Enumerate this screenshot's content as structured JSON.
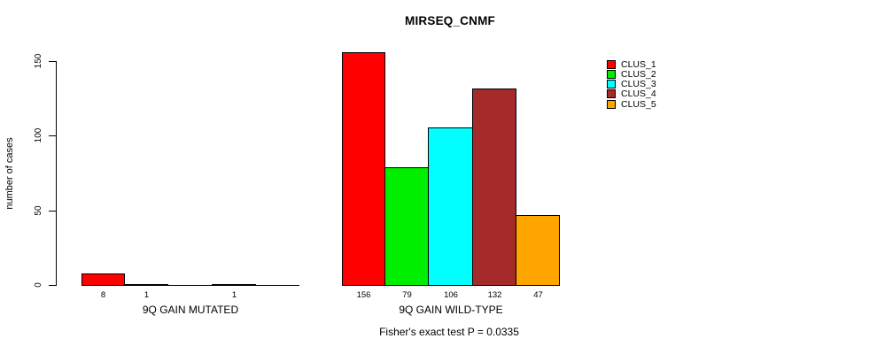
{
  "chart_data": {
    "type": "bar",
    "title": "MIRSEQ_CNMF",
    "ylabel": "number of cases",
    "xlabel": "",
    "ylim": [
      0,
      150
    ],
    "yticks": [
      "0",
      "50",
      "100",
      "150"
    ],
    "grid": false,
    "legend_position": "top-right",
    "legend": [
      {
        "name": "CLUS_1",
        "color": "#FF0000"
      },
      {
        "name": "CLUS_2",
        "color": "#00EE00"
      },
      {
        "name": "CLUS_3",
        "color": "#00FFFF"
      },
      {
        "name": "CLUS_4",
        "color": "#A52A2A"
      },
      {
        "name": "CLUS_5",
        "color": "#FFA500"
      }
    ],
    "groups": [
      {
        "label": "9Q GAIN MUTATED",
        "series": [
          "CLUS_1",
          "CLUS_2",
          "CLUS_3",
          "CLUS_4",
          "CLUS_5"
        ],
        "values": [
          8,
          1,
          0,
          1,
          0
        ],
        "bar_labels": [
          "8",
          "1",
          "",
          "1",
          ""
        ]
      },
      {
        "label": "9Q GAIN WILD-TYPE",
        "series": [
          "CLUS_1",
          "CLUS_2",
          "CLUS_3",
          "CLUS_4",
          "CLUS_5"
        ],
        "values": [
          156,
          79,
          106,
          132,
          47
        ],
        "bar_labels": [
          "156",
          "79",
          "106",
          "132",
          "47"
        ]
      }
    ],
    "annotation": "Fisher's exact test P = 0.0335"
  }
}
